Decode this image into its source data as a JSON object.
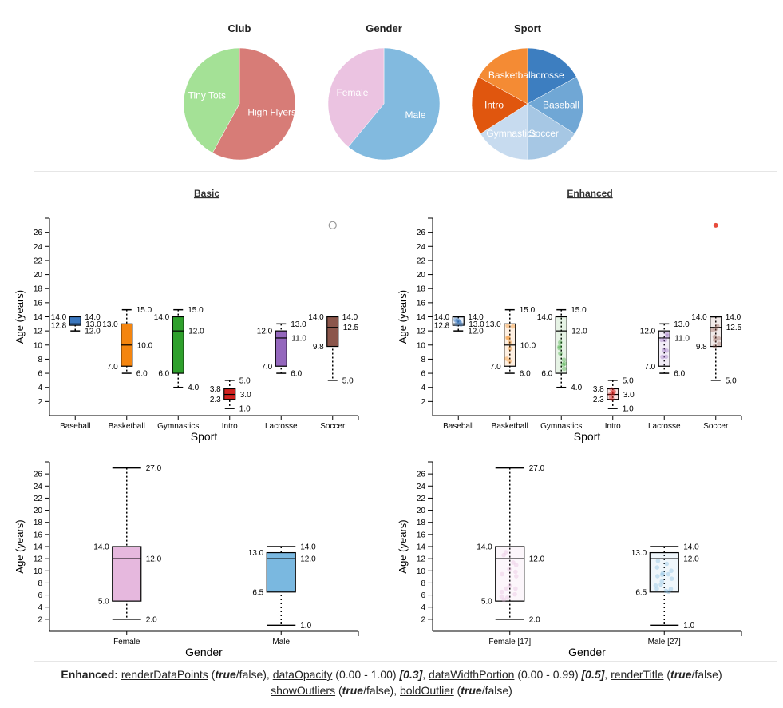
{
  "pies": [
    {
      "title": "Club",
      "slices": [
        {
          "label": "High Flyers",
          "value": 58,
          "color": "#d77c77"
        },
        {
          "label": "Tiny Tots",
          "value": 42,
          "color": "#a4e196"
        }
      ]
    },
    {
      "title": "Gender",
      "slices": [
        {
          "label": "Male",
          "value": 61,
          "color": "#82badf"
        },
        {
          "label": "Female",
          "value": 39,
          "color": "#ebc3e1"
        }
      ]
    },
    {
      "title": "Sport",
      "slices": [
        {
          "label": "Lacrosse",
          "value": 17,
          "color": "#3d7ec0"
        },
        {
          "label": "Baseball",
          "value": 17,
          "color": "#70a7d5"
        },
        {
          "label": "Soccer",
          "value": 16,
          "color": "#a6c7e4"
        },
        {
          "label": "Gymnastics",
          "value": 16,
          "color": "#c7dbef"
        },
        {
          "label": "Intro",
          "value": 17,
          "color": "#e0560e"
        },
        {
          "label": "Basketball",
          "value": 17,
          "color": "#f48b34"
        }
      ]
    }
  ],
  "section_titles": {
    "basic": "Basic",
    "enhanced": "Enhanced"
  },
  "chart_data": [
    {
      "type": "box",
      "name": "basic-sport",
      "ylabel": "Age (years)",
      "xlabel": "Sport",
      "ylim": [
        0,
        28
      ],
      "yticks": [
        2,
        4,
        6,
        8,
        10,
        12,
        14,
        16,
        18,
        20,
        22,
        24,
        26
      ],
      "boxes": [
        {
          "category": "Baseball",
          "min": 12,
          "q1": 12.8,
          "median": 13.0,
          "q3": 14,
          "max": 14,
          "color": "#3a77bf"
        },
        {
          "category": "Basketball",
          "min": 6,
          "q1": 7,
          "median": 10,
          "q3": 13,
          "max": 15,
          "color": "#f4850f"
        },
        {
          "category": "Gymnastics",
          "min": 4,
          "q1": 6,
          "median": 12,
          "q3": 14,
          "max": 15,
          "color": "#2ea02c"
        },
        {
          "category": "Intro",
          "min": 1,
          "q1": 2.3,
          "median": 3,
          "q3": 3.8,
          "max": 5,
          "color": "#d1221f"
        },
        {
          "category": "Lacrosse",
          "min": 6,
          "q1": 7,
          "median": 11,
          "q3": 12,
          "max": 13,
          "color": "#9467bd"
        },
        {
          "category": "Soccer",
          "min": 5,
          "q1": 9.8,
          "median": 12.5,
          "q3": 14,
          "max": 14,
          "color": "#8b564b",
          "outliers": [
            27
          ]
        }
      ],
      "outlier_style": "hollow"
    },
    {
      "type": "box",
      "name": "enhanced-sport",
      "ylabel": "Age (years)",
      "xlabel": "Sport",
      "ylim": [
        0,
        28
      ],
      "yticks": [
        2,
        4,
        6,
        8,
        10,
        12,
        14,
        16,
        18,
        20,
        22,
        24,
        26
      ],
      "boxes": [
        {
          "category": "Baseball",
          "min": 12,
          "q1": 12.8,
          "median": 13.0,
          "q3": 14,
          "max": 14,
          "color": "#3a77bf"
        },
        {
          "category": "Basketball",
          "min": 6,
          "q1": 7,
          "median": 10,
          "q3": 13,
          "max": 15,
          "color": "#f4850f"
        },
        {
          "category": "Gymnastics",
          "min": 4,
          "q1": 6,
          "median": 12,
          "q3": 14,
          "max": 15,
          "color": "#2ea02c"
        },
        {
          "category": "Intro",
          "min": 1,
          "q1": 2.3,
          "median": 3,
          "q3": 3.8,
          "max": 5,
          "color": "#d1221f"
        },
        {
          "category": "Lacrosse",
          "min": 6,
          "q1": 7,
          "median": 11,
          "q3": 12,
          "max": 13,
          "color": "#9467bd"
        },
        {
          "category": "Soccer",
          "min": 5,
          "q1": 9.8,
          "median": 12.5,
          "q3": 14,
          "max": 14,
          "color": "#8b564b",
          "outliers": [
            27
          ]
        }
      ],
      "outlier_style": "bold",
      "enhanced": true
    },
    {
      "type": "box",
      "name": "basic-gender",
      "ylabel": "Age (years)",
      "xlabel": "Gender",
      "ylim": [
        0,
        28
      ],
      "yticks": [
        2,
        4,
        6,
        8,
        10,
        12,
        14,
        16,
        18,
        20,
        22,
        24,
        26
      ],
      "boxes": [
        {
          "category": "Female",
          "min": 2,
          "q1": 5,
          "median": 12,
          "q3": 14,
          "max": 27,
          "color": "#e6b8de"
        },
        {
          "category": "Male",
          "min": 1,
          "q1": 6.5,
          "median": 12,
          "q3": 13,
          "max": 14,
          "color": "#7ab8e0"
        }
      ]
    },
    {
      "type": "box",
      "name": "enhanced-gender",
      "ylabel": "Age (years)",
      "xlabel": "Gender",
      "ylim": [
        0,
        28
      ],
      "yticks": [
        2,
        4,
        6,
        8,
        10,
        12,
        14,
        16,
        18,
        20,
        22,
        24,
        26
      ],
      "boxes": [
        {
          "category": "Female [17]",
          "min": 2,
          "q1": 5,
          "median": 12,
          "q3": 14,
          "max": 27,
          "color": "#e6b8de"
        },
        {
          "category": "Male [27]",
          "min": 1,
          "q1": 6.5,
          "median": 12,
          "q3": 13,
          "max": 14,
          "color": "#7ab8e0"
        }
      ],
      "enhanced": true
    }
  ],
  "footer": {
    "label": "Enhanced:",
    "items": [
      {
        "link": "renderDataPoints",
        "open": " (",
        "val": "true",
        "rest": "/false), "
      },
      {
        "link": "dataOpacity",
        "open": " (0.00 - 1.00) ",
        "val": "[0.3]",
        "rest": ", "
      },
      {
        "link": "dataWidthPortion",
        "open": " (0.00 - 0.99) ",
        "val": "[0.5]",
        "rest": ", "
      },
      {
        "link": "renderTitle",
        "open": " (",
        "val": "true",
        "rest": "/false)"
      }
    ],
    "items2": [
      {
        "link": "showOutliers",
        "open": " (",
        "val": "true",
        "rest": "/false), "
      },
      {
        "link": "boldOutlier",
        "open": " (",
        "val": "true",
        "rest": "/false)"
      }
    ]
  }
}
